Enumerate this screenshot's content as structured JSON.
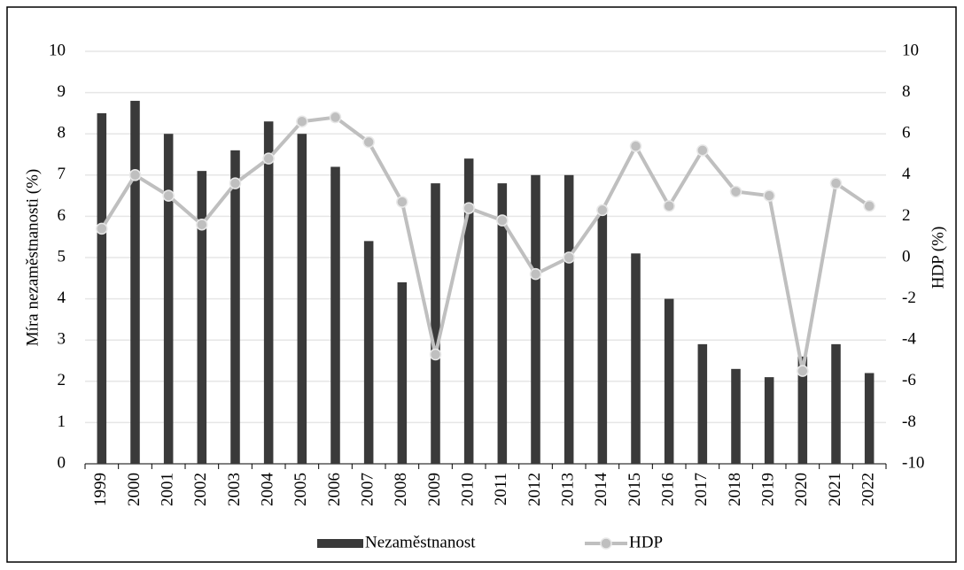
{
  "chart_data": {
    "type": "bar-line",
    "categories": [
      "1999",
      "2000",
      "2001",
      "2002",
      "2003",
      "2004",
      "2005",
      "2006",
      "2007",
      "2008",
      "2009",
      "2010",
      "2011",
      "2012",
      "2013",
      "2014",
      "2015",
      "2016",
      "2017",
      "2018",
      "2019",
      "2020",
      "2021",
      "2022"
    ],
    "ylabel": "Míra nezaměstnanosti (%)",
    "y2label": "HDP (%)",
    "ylim": [
      0,
      10
    ],
    "yticks": [
      0,
      1,
      2,
      3,
      4,
      5,
      6,
      7,
      8,
      9,
      10
    ],
    "y2lim": [
      -10,
      10
    ],
    "y2ticks": [
      -10,
      -8,
      -6,
      -4,
      -2,
      0,
      2,
      4,
      6,
      8,
      10
    ],
    "grid": true,
    "legend": "bottom",
    "series": [
      {
        "name": "Nezaměstnanost",
        "type": "bar",
        "color": "#3a3a3a",
        "values": [
          8.5,
          8.8,
          8.0,
          7.1,
          7.6,
          8.3,
          8.0,
          7.2,
          5.4,
          4.4,
          6.8,
          7.4,
          6.8,
          7.0,
          7.0,
          6.1,
          5.1,
          4.0,
          2.9,
          2.3,
          2.1,
          2.6,
          2.9,
          2.2
        ]
      },
      {
        "name": "HDP",
        "type": "line",
        "axis": "y2",
        "color": "#bfbfbf",
        "values": [
          1.4,
          4.0,
          3.0,
          1.6,
          3.6,
          4.8,
          6.6,
          6.8,
          5.6,
          2.7,
          -4.7,
          2.4,
          1.8,
          -0.8,
          0.0,
          2.3,
          5.4,
          2.5,
          5.2,
          3.2,
          3.0,
          -5.5,
          3.6,
          2.5
        ]
      }
    ]
  }
}
